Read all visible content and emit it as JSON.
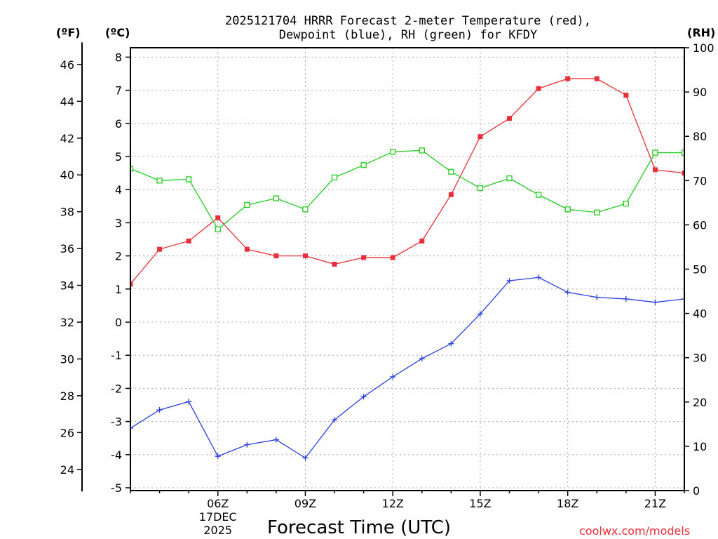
{
  "chart_data": {
    "type": "line",
    "title": {
      "line1": "2025121704 HRRR Forecast 2-meter Temperature (red),",
      "line2": "Dewpoint (blue), RH (green) for KFDY"
    },
    "xlabel": "Forecast Time (UTC)",
    "credit": "coolwx.com/models",
    "units": {
      "fahrenheit": "(ºF)",
      "celsius": "(ºC)",
      "rh": "(RH)"
    },
    "x_hours": [
      3,
      4,
      5,
      6,
      7,
      8,
      9,
      10,
      11,
      12,
      13,
      14,
      15,
      16,
      17,
      18,
      19,
      20,
      21,
      22
    ],
    "xlim": [
      3,
      22
    ],
    "x_ticks": [
      {
        "hour": 6,
        "label": "06Z",
        "sub1": "17DEC",
        "sub2": "2025"
      },
      {
        "hour": 9,
        "label": "09Z"
      },
      {
        "hour": 12,
        "label": "12Z"
      },
      {
        "hour": 15,
        "label": "15Z"
      },
      {
        "hour": 18,
        "label": "18Z"
      },
      {
        "hour": 21,
        "label": "21Z"
      }
    ],
    "celsius_axis": {
      "range": [
        -5,
        8.2
      ],
      "ticks": [
        "-5",
        "-4",
        "-3",
        "-2",
        "-1",
        "0",
        "1",
        "2",
        "3",
        "4",
        "5",
        "6",
        "7",
        "8"
      ]
    },
    "fahrenheit_axis": {
      "ticks": [
        "24",
        "26",
        "28",
        "30",
        "32",
        "34",
        "36",
        "38",
        "40",
        "42",
        "44",
        "46"
      ]
    },
    "rh_axis": {
      "range": [
        0,
        100
      ],
      "ticks": [
        "0",
        "10",
        "20",
        "30",
        "40",
        "50",
        "60",
        "70",
        "80",
        "90",
        "100"
      ]
    },
    "series": [
      {
        "name": "Temperature",
        "axis": "celsius",
        "color": "#e8303a",
        "marker": "filled-square",
        "values": [
          1.15,
          2.2,
          2.45,
          3.15,
          2.2,
          2.0,
          2.0,
          1.75,
          1.95,
          1.95,
          2.45,
          3.85,
          5.6,
          6.15,
          7.05,
          7.35,
          7.35,
          6.85,
          4.6,
          null
        ]
      },
      {
        "name": "Dewpoint",
        "axis": "celsius",
        "color": "#2a3fe0",
        "marker": "plus",
        "values": [
          -3.2,
          -2.65,
          -2.4,
          -4.05,
          -3.7,
          -3.55,
          -4.1,
          -2.95,
          -2.25,
          -1.65,
          -1.1,
          -0.65,
          0.25,
          1.25,
          1.35,
          0.9,
          0.75,
          0.7,
          0.6,
          null
        ]
      },
      {
        "name": "RH",
        "axis": "rh",
        "color": "#22cc22",
        "marker": "open-square",
        "values": [
          72.7,
          70.0,
          70.3,
          59.0,
          64.5,
          66.0,
          63.5,
          70.7,
          73.5,
          76.5,
          76.8,
          72.0,
          68.3,
          70.5,
          66.8,
          63.5,
          62.8,
          64.8,
          76.3,
          null
        ]
      }
    ]
  }
}
